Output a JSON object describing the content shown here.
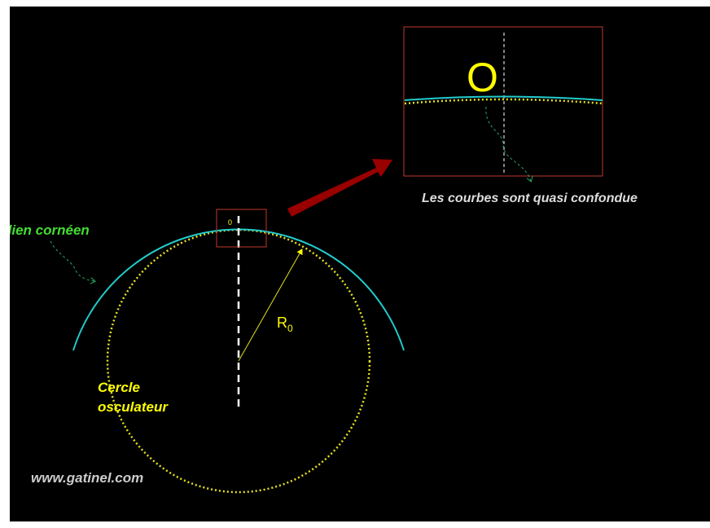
{
  "labels": {
    "meridian": "dien cornéen",
    "osculating_circle": [
      "Cercle",
      "osculateur"
    ],
    "radius": {
      "main": "R",
      "sub": "0"
    },
    "point_small": "0",
    "point_zoom": "O",
    "caption": "Les courbes sont quasi confondue",
    "watermark": "www.gatinel.com"
  }
}
